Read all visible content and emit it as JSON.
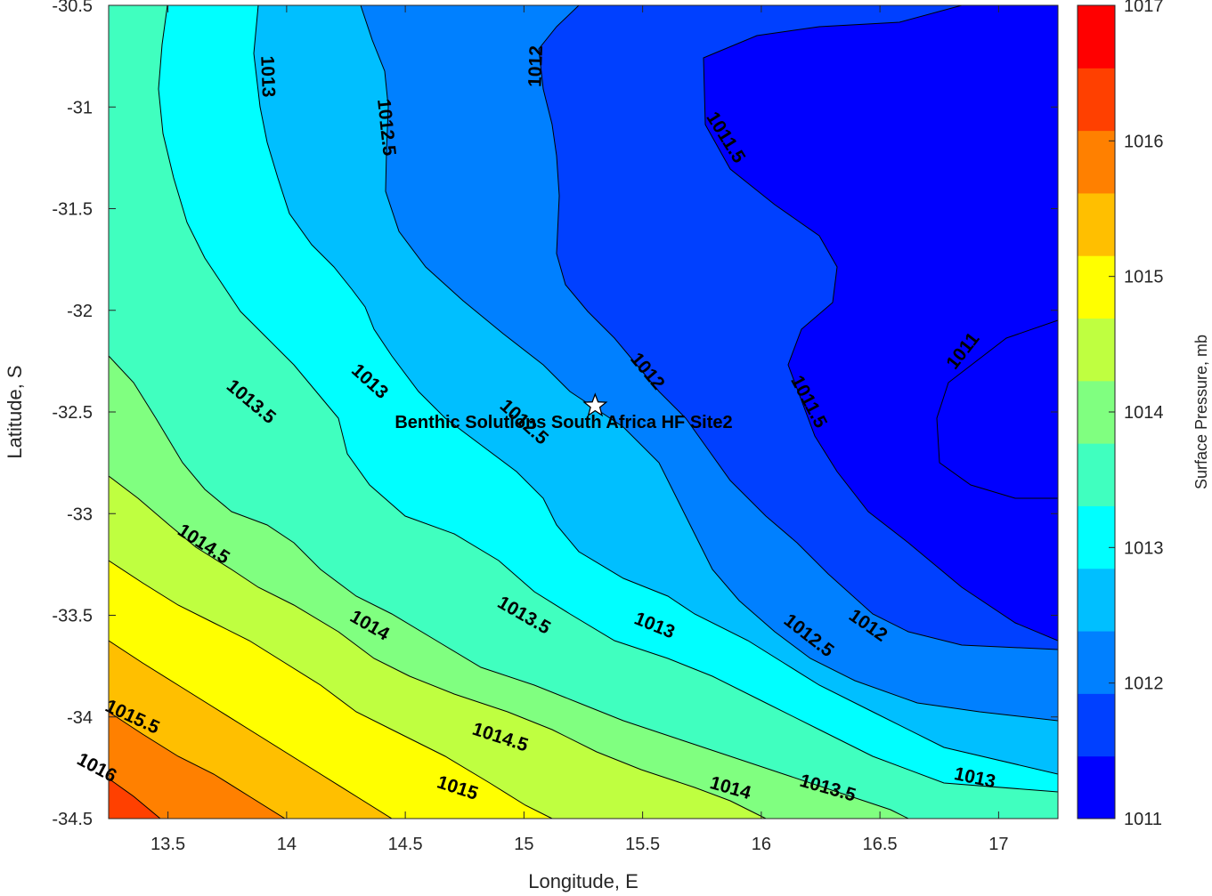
{
  "chart_data": {
    "type": "contour",
    "xlabel": "Longitude, E",
    "ylabel": "Latitude, S",
    "xlim": [
      13.25,
      17.25
    ],
    "ylim": [
      -34.5,
      -30.5
    ],
    "x_ticks": [
      "13.5",
      "14",
      "14.5",
      "15",
      "15.5",
      "16",
      "16.5",
      "17"
    ],
    "y_ticks": [
      "-30.5",
      "-31",
      "-31.5",
      "-32",
      "-32.5",
      "-33",
      "-33.5",
      "-34",
      "-34.5"
    ],
    "colorbar": {
      "title": "Surface Pressure, mb",
      "range": [
        1011,
        1017
      ],
      "ticks": [
        "1011",
        "1012",
        "1013",
        "1014",
        "1015",
        "1016",
        "1017"
      ],
      "colors": [
        "#0000ff",
        "#0040ff",
        "#0080ff",
        "#00bfff",
        "#00ffff",
        "#40ffbf",
        "#80ff80",
        "#bfff40",
        "#ffff00",
        "#ffbf00",
        "#ff8000",
        "#ff4000",
        "#ff0000"
      ]
    },
    "contour_levels": [
      1011,
      1011.5,
      1012,
      1012.5,
      1013,
      1013.5,
      1014,
      1014.5,
      1015,
      1015.5,
      1016,
      1016.5
    ],
    "contour_labels": [
      {
        "text": "1013",
        "lon": 13.92,
        "lat": -30.85,
        "angle": 88
      },
      {
        "text": "1012.5",
        "lon": 14.42,
        "lat": -31.1,
        "angle": 84
      },
      {
        "text": "1012",
        "lon": 15.05,
        "lat": -30.8,
        "angle": -88
      },
      {
        "text": "1011.5",
        "lon": 15.85,
        "lat": -31.15,
        "angle": 58
      },
      {
        "text": "1011",
        "lon": 16.85,
        "lat": -32.2,
        "angle": -52
      },
      {
        "text": "1012",
        "lon": 15.52,
        "lat": -32.3,
        "angle": 50
      },
      {
        "text": "1011.5",
        "lon": 16.2,
        "lat": -32.45,
        "angle": 62
      },
      {
        "text": "1013.5",
        "lon": 13.85,
        "lat": -32.45,
        "angle": 40
      },
      {
        "text": "1013",
        "lon": 14.35,
        "lat": -32.35,
        "angle": 42
      },
      {
        "text": "1012.5",
        "lon": 15.0,
        "lat": -32.55,
        "angle": 42
      },
      {
        "text": "1014.5",
        "lon": 13.65,
        "lat": -33.15,
        "angle": 33
      },
      {
        "text": "1014",
        "lon": 14.35,
        "lat": -33.55,
        "angle": 30
      },
      {
        "text": "1013.5",
        "lon": 15.0,
        "lat": -33.5,
        "angle": 30
      },
      {
        "text": "1013",
        "lon": 15.55,
        "lat": -33.55,
        "angle": 22
      },
      {
        "text": "1012.5",
        "lon": 16.2,
        "lat": -33.6,
        "angle": 38
      },
      {
        "text": "1012",
        "lon": 16.45,
        "lat": -33.55,
        "angle": 35
      },
      {
        "text": "1015.5",
        "lon": 13.35,
        "lat": -34.0,
        "angle": 25
      },
      {
        "text": "1014.5",
        "lon": 14.9,
        "lat": -34.1,
        "angle": 18
      },
      {
        "text": "1016",
        "lon": 13.2,
        "lat": -34.25,
        "angle": 28
      },
      {
        "text": "1015",
        "lon": 14.72,
        "lat": -34.35,
        "angle": 18
      },
      {
        "text": "1014",
        "lon": 15.87,
        "lat": -34.35,
        "angle": 16
      },
      {
        "text": "1013.5",
        "lon": 16.28,
        "lat": -34.35,
        "angle": 16
      },
      {
        "text": "1013",
        "lon": 16.9,
        "lat": -34.3,
        "angle": 12
      }
    ],
    "marker": {
      "label": "Benthic Solutions South Africa HF Site2",
      "lon": 15.3,
      "lat": -32.47,
      "symbol": "star"
    }
  }
}
